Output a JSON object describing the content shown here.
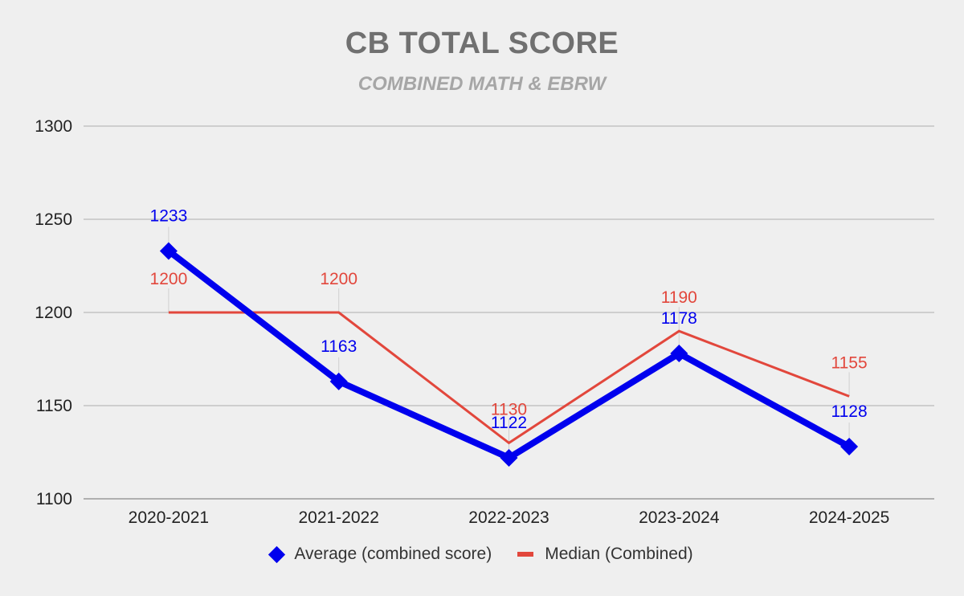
{
  "chart_data": {
    "type": "line",
    "title": "CB TOTAL SCORE",
    "subtitle": "COMBINED MATH & EBRW",
    "categories": [
      "2020-2021",
      "2021-2022",
      "2022-2023",
      "2023-2024",
      "2024-2025"
    ],
    "series": [
      {
        "name": "Average (combined score)",
        "values": [
          1233,
          1163,
          1122,
          1178,
          1128
        ],
        "color": "#0000ee",
        "marker": "diamond"
      },
      {
        "name": "Median (Combined)",
        "values": [
          1200,
          1200,
          1130,
          1190,
          1155
        ],
        "color": "#e2473c",
        "marker": "none"
      }
    ],
    "ylim": [
      1100,
      1300
    ],
    "yticks": [
      "1300",
      "1250",
      "1200",
      "1150",
      "1100"
    ],
    "xlabel": "",
    "ylabel": "",
    "grid": true,
    "legend_position": "bottom",
    "data_labels": true,
    "background": "#efefef"
  }
}
